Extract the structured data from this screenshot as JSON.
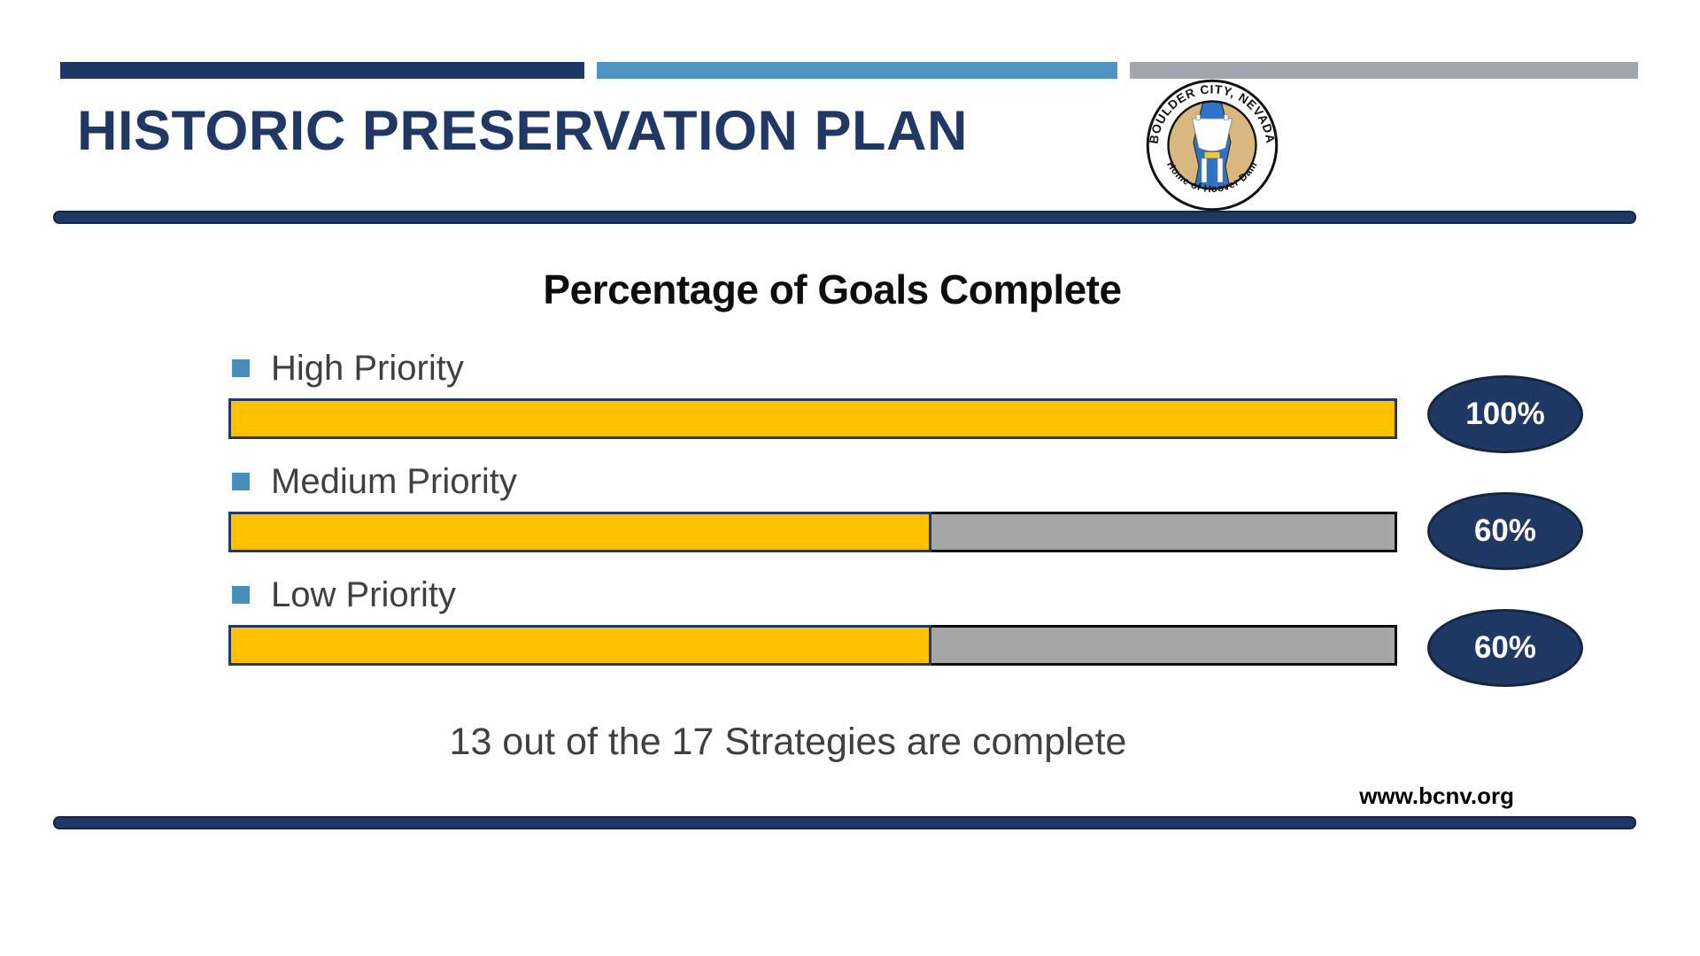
{
  "slide": {
    "title": "HISTORIC PRESERVATION PLAN",
    "summary": "13 out of the 17 Strategies are complete",
    "footer_url": "www.bcnv.org"
  },
  "logo": {
    "name": "Boulder City, Nevada city seal",
    "text_top": "BOULDER CITY, NEVADA",
    "text_bottom": "Home of Hoover Dam"
  },
  "chart_data": {
    "type": "bar",
    "orientation": "horizontal",
    "title": "Percentage of Goals Complete",
    "categories": [
      "High Priority",
      "Medium Priority",
      "Low Priority"
    ],
    "values": [
      100,
      60,
      60
    ],
    "value_labels": [
      "100%",
      "60%",
      "60%"
    ],
    "xlim": [
      0,
      100
    ],
    "grid": false,
    "legend": false,
    "colors": {
      "complete_fill": "#FFC000",
      "complete_border": "#1F3864",
      "remaining_fill": "#A6A6A6",
      "remaining_border": "#0D0D0D",
      "badge_fill": "#1F3864",
      "badge_text": "#FFFFFF",
      "bullet": "#4690BE",
      "label_text": "#404040"
    }
  },
  "theme": {
    "accent_navy": "#1F3864",
    "accent_light_blue": "#4E95C4",
    "accent_gray": "#A0A7AE",
    "title_text": "#1F3864"
  }
}
